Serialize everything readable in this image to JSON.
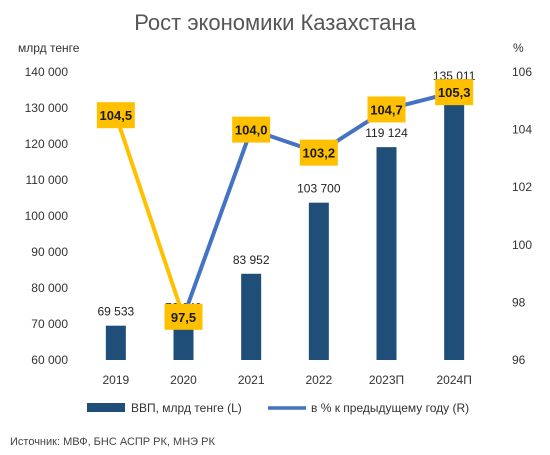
{
  "chart_data": {
    "type": "bar",
    "title": "Рост экономики Казахстана",
    "left_unit": "млрд тенге",
    "right_unit": "%",
    "categories": [
      "2019",
      "2020",
      "2021",
      "2022",
      "2023П",
      "2024П"
    ],
    "series": [
      {
        "name": "ВВП, млрд тенге (L)",
        "type": "bar",
        "axis": "left",
        "color": "#1f4e79",
        "values": [
          69533,
          70649,
          83952,
          103700,
          119124,
          135011
        ],
        "labels": [
          "69 533",
          "70 649",
          "83 952",
          "103 700",
          "119 124",
          "135 011"
        ]
      },
      {
        "name": "в % к предыдущему году (R)",
        "type": "line",
        "axis": "right",
        "color": "#4472c4",
        "highlight_color": "#ffc000",
        "values": [
          104.5,
          97.5,
          104.0,
          103.2,
          104.7,
          105.3
        ],
        "labels": [
          "104,5",
          "97,5",
          "104,0",
          "103,2",
          "104,7",
          "105,3"
        ]
      }
    ],
    "y_left": {
      "ylim": [
        60000,
        140000
      ],
      "ticks": [
        60000,
        70000,
        80000,
        90000,
        100000,
        110000,
        120000,
        130000,
        140000
      ],
      "tick_labels": [
        "60 000",
        "70 000",
        "80 000",
        "90 000",
        "100 000",
        "110 000",
        "120 000",
        "130 000",
        "140 000"
      ]
    },
    "y_right": {
      "ylim": [
        96,
        106
      ],
      "ticks": [
        96,
        98,
        100,
        102,
        104,
        106
      ],
      "tick_labels": [
        "96",
        "98",
        "100",
        "102",
        "104",
        "106"
      ]
    },
    "grid": false,
    "legend_position": "bottom",
    "source": "Источник: МВФ, БНС АСПР РК, МНЭ РК"
  }
}
